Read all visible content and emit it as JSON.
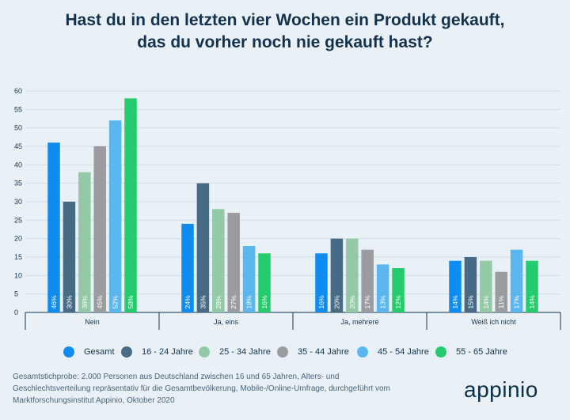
{
  "title": {
    "line1": "Hast du in den letzten vier Wochen ein Produkt gekauft,",
    "line2": "das du vorher noch nie gekauft hast?"
  },
  "chart_data": {
    "type": "bar",
    "title": "Hast du in den letzten vier Wochen ein Produkt gekauft, das du vorher noch nie gekauft hast?",
    "categories": [
      "Nein",
      "Ja, eins",
      "Ja, mehrere",
      "Weiß ich nicht"
    ],
    "series": [
      {
        "name": "Gesamt",
        "color": "#0f8cf0",
        "values": [
          46,
          24,
          16,
          14
        ],
        "labels": [
          "46%",
          "24%",
          "16%",
          "14%"
        ]
      },
      {
        "name": "16 - 24 Jahre",
        "color": "#476b85",
        "values": [
          30,
          35,
          20,
          15
        ],
        "labels": [
          "30%",
          "35%",
          "20%",
          "15%"
        ]
      },
      {
        "name": "25 - 34 Jahre",
        "color": "#93c9a7",
        "values": [
          38,
          28,
          20,
          14
        ],
        "labels": [
          "38%",
          "28%",
          "20%",
          "14%"
        ]
      },
      {
        "name": "35 - 44 Jahre",
        "color": "#9b9ca0",
        "values": [
          45,
          27,
          17,
          11
        ],
        "labels": [
          "45%",
          "27%",
          "17%",
          "11%"
        ]
      },
      {
        "name": "45 - 54 Jahre",
        "color": "#5ab6ec",
        "values": [
          52,
          18,
          13,
          17
        ],
        "labels": [
          "52%",
          "18%",
          "13%",
          "17%"
        ]
      },
      {
        "name": "55 - 65 Jahre",
        "color": "#25cc6e",
        "values": [
          58,
          16,
          12,
          14
        ],
        "labels": [
          "58%",
          "16%",
          "12%",
          "14%"
        ]
      }
    ],
    "yticks": [
      "0",
      "5",
      "10",
      "15",
      "20",
      "25",
      "30",
      "35",
      "40",
      "45",
      "50",
      "55",
      "60"
    ],
    "ylim": [
      0,
      60
    ],
    "xlabel": "",
    "ylabel": "",
    "grid": true,
    "legend": "bottom"
  },
  "footnote": {
    "line1": "Gesamtstichprobe: 2.000 Personen aus Deutschland zwischen 16 und 65 Jahren, Alters- und",
    "line2": "Geschlechtsverteilung repräsentativ für die Gesamtbevölkerung, Mobile-/Online-Umfrage, durchgeführt vom",
    "line3": "Marktforschungsinstitut Appinio, Oktober 2020"
  },
  "brand": "appinio"
}
